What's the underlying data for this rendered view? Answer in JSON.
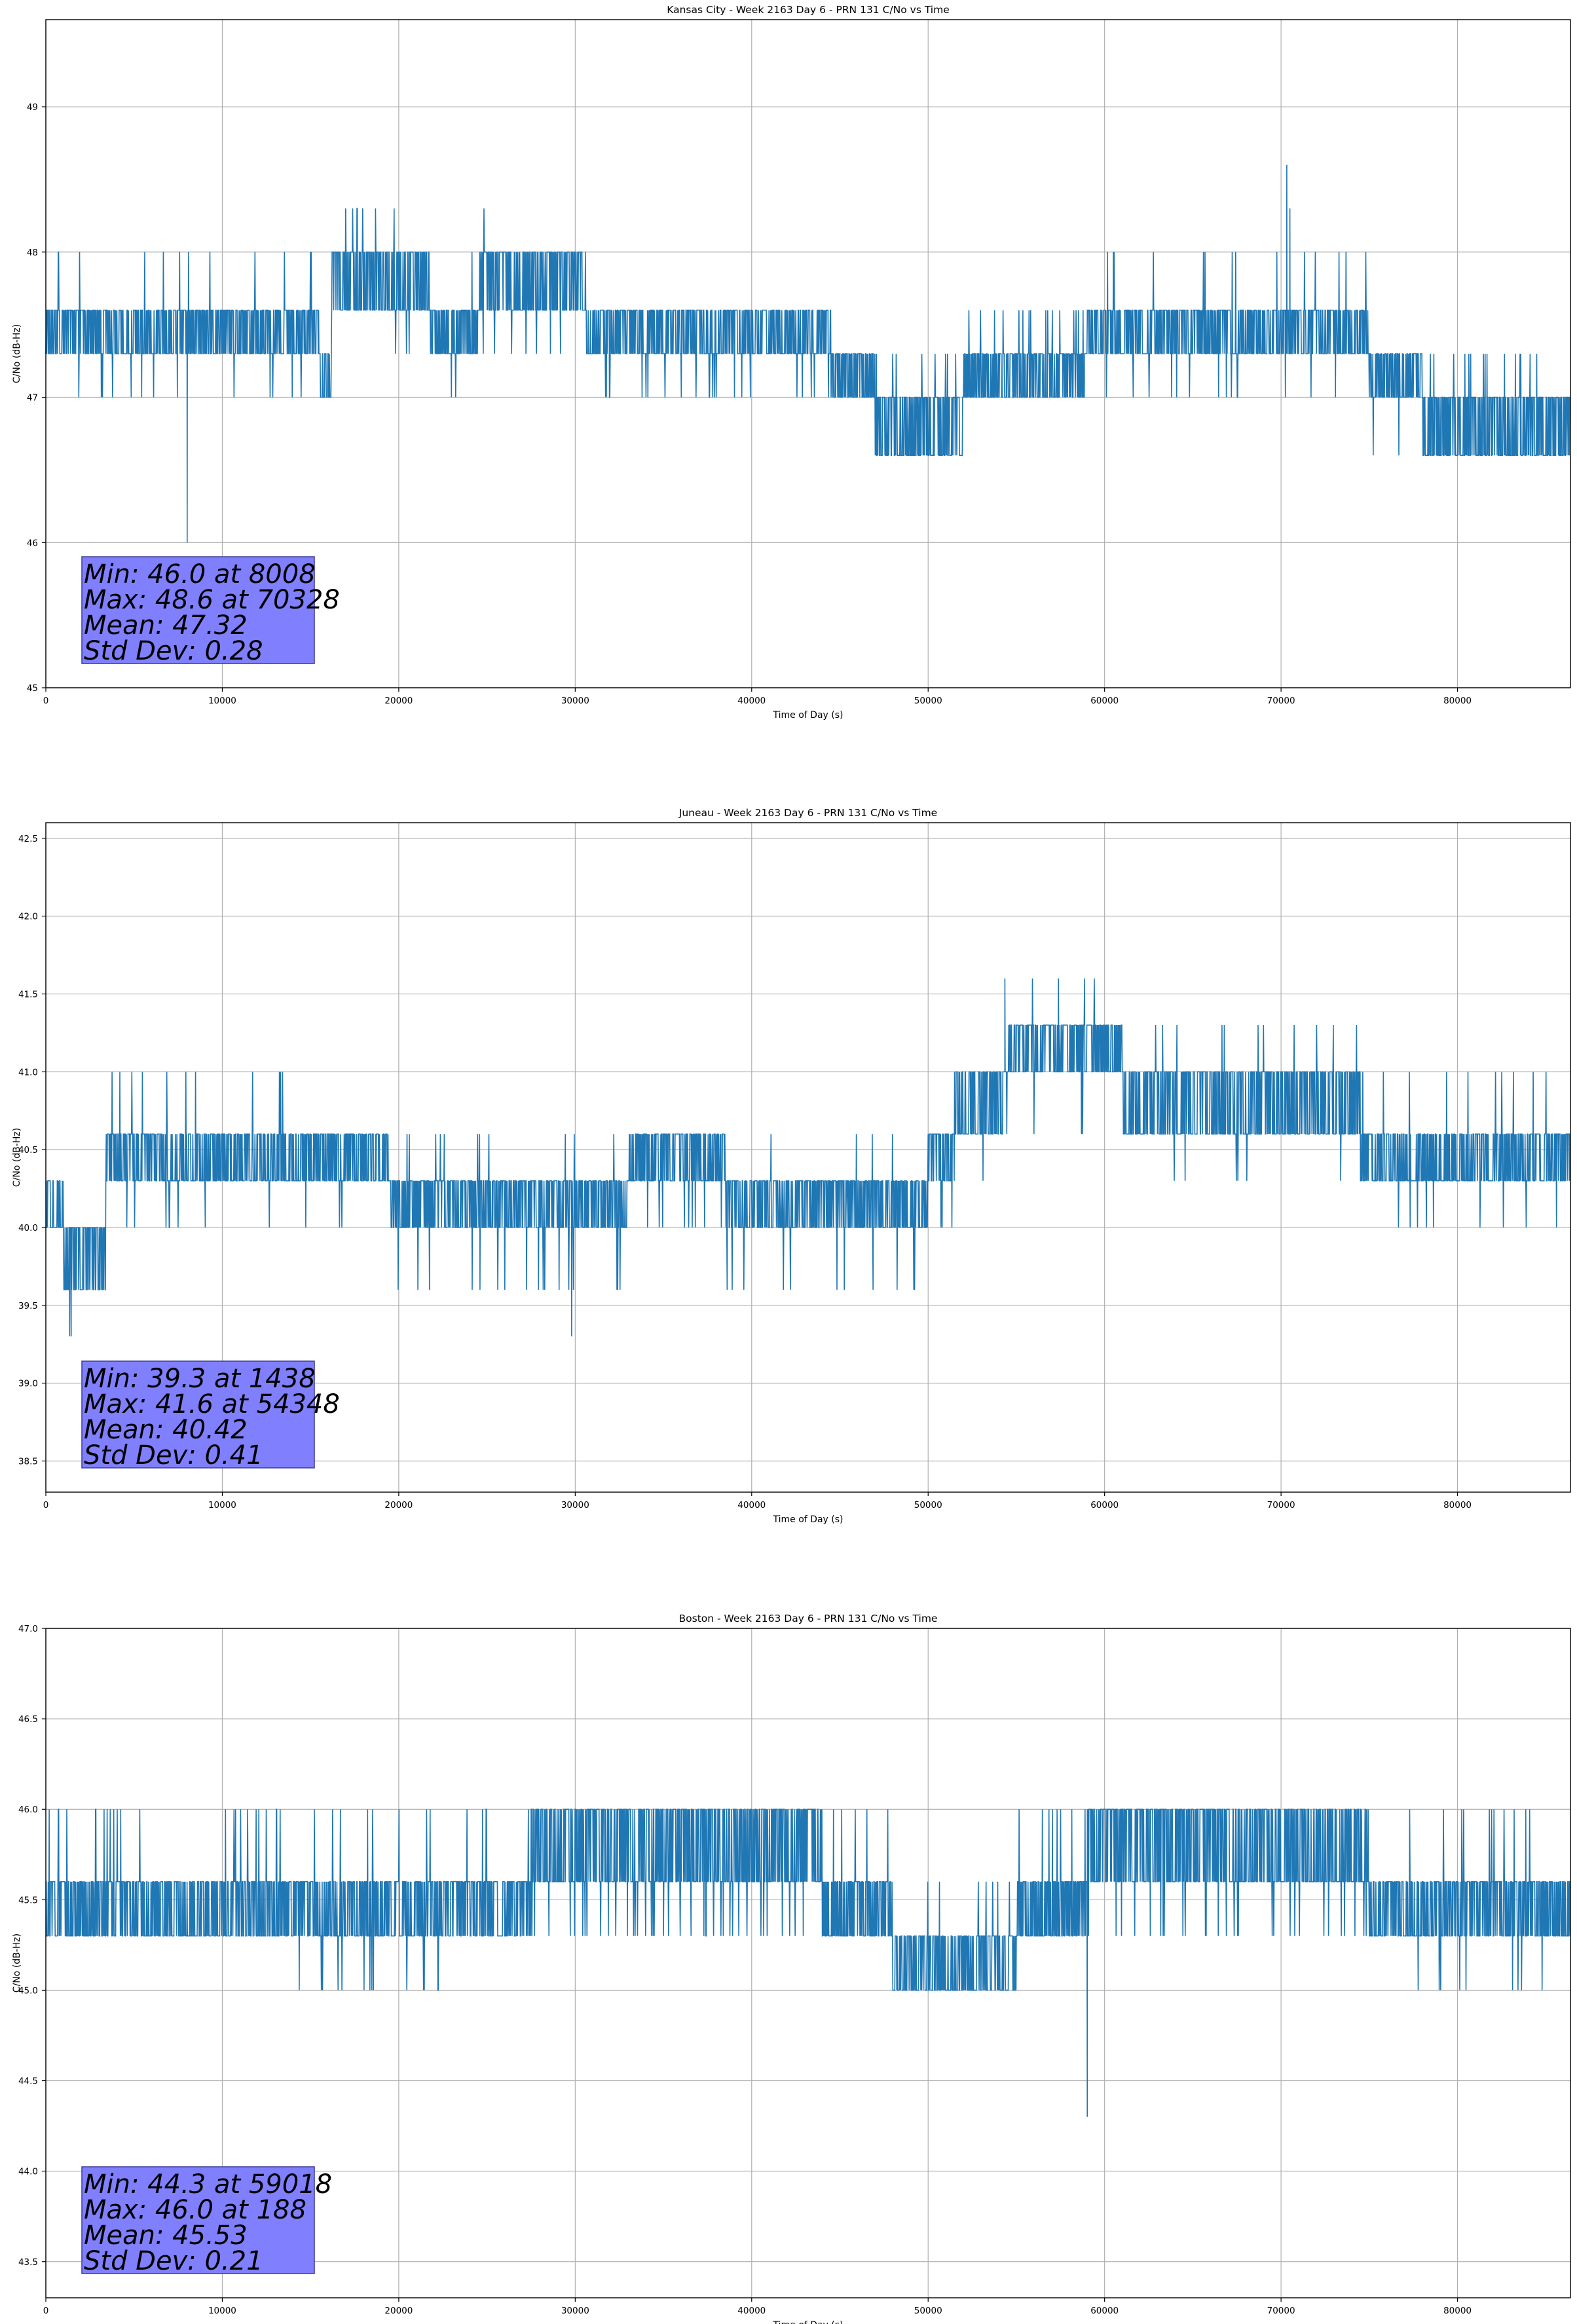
{
  "colors": {
    "line": "#1f77b4",
    "grid": "#b0b0b0",
    "stats_box": "#8080ff",
    "stats_box_border": "#3a3a9a"
  },
  "chart_data": [
    {
      "type": "line",
      "title": "Kansas City - Week 2163 Day 6 - PRN 131 C/No vs Time",
      "xlabel": "Time of Day (s)",
      "ylabel": "C/No (dB-Hz)",
      "xlim": [
        0,
        86400
      ],
      "ylim": [
        45,
        49.6
      ],
      "xticks": [
        0,
        10000,
        20000,
        30000,
        40000,
        50000,
        60000,
        70000,
        80000
      ],
      "yticks": [
        "45",
        "46",
        "47",
        "48",
        "49"
      ],
      "grid": true,
      "stats": [
        "Min: 46.0 at 8008",
        "Max: 48.6 at 70328",
        "Mean: 47.32",
        "Std Dev: 0.28"
      ],
      "segments": [
        {
          "x0": 0,
          "x1": 8000,
          "levels": [
            47.3,
            47.6
          ],
          "spikes": [
            47.0,
            48.0
          ]
        },
        {
          "x0": 8000,
          "x1": 15500,
          "levels": [
            47.3,
            47.6
          ],
          "spikes": [
            47.0,
            48.0
          ]
        },
        {
          "x0": 15500,
          "x1": 16200,
          "levels": [
            47.0,
            47.3
          ],
          "spikes": []
        },
        {
          "x0": 16200,
          "x1": 21800,
          "levels": [
            47.6,
            48.0
          ],
          "spikes": [
            47.3,
            48.3
          ]
        },
        {
          "x0": 21800,
          "x1": 24500,
          "levels": [
            47.3,
            47.6
          ],
          "spikes": [
            47.0,
            48.0
          ]
        },
        {
          "x0": 24500,
          "x1": 30600,
          "levels": [
            47.6,
            48.0
          ],
          "spikes": [
            47.3,
            48.3
          ]
        },
        {
          "x0": 30600,
          "x1": 44500,
          "levels": [
            47.3,
            47.6
          ],
          "spikes": [
            47.0
          ]
        },
        {
          "x0": 44500,
          "x1": 47000,
          "levels": [
            47.0,
            47.3
          ],
          "spikes": []
        },
        {
          "x0": 47000,
          "x1": 52000,
          "levels": [
            46.6,
            47.0
          ],
          "spikes": [
            47.3
          ]
        },
        {
          "x0": 52000,
          "x1": 59000,
          "levels": [
            47.0,
            47.3
          ],
          "spikes": [
            47.6
          ]
        },
        {
          "x0": 59000,
          "x1": 75000,
          "levels": [
            47.3,
            47.6
          ],
          "spikes": [
            47.0,
            48.0
          ]
        },
        {
          "x0": 75000,
          "x1": 78000,
          "levels": [
            47.0,
            47.3
          ],
          "spikes": [
            46.6
          ]
        },
        {
          "x0": 78000,
          "x1": 86400,
          "levels": [
            46.6,
            47.0
          ],
          "spikes": [
            47.3
          ]
        }
      ],
      "events": [
        {
          "x": 8008,
          "y": 46.0
        },
        {
          "x": 70328,
          "y": 48.6
        },
        {
          "x": 70500,
          "y": 48.3
        }
      ]
    },
    {
      "type": "line",
      "title": "Juneau - Week 2163 Day 6 - PRN 131 C/No vs Time",
      "xlabel": "Time of Day (s)",
      "ylabel": "C/No (dB-Hz)",
      "xlim": [
        0,
        86400
      ],
      "ylim": [
        38.3,
        42.6
      ],
      "xticks": [
        0,
        10000,
        20000,
        30000,
        40000,
        50000,
        60000,
        70000,
        80000
      ],
      "yticks": [
        "38.5",
        "39.0",
        "39.5",
        "40.0",
        "40.5",
        "41.0",
        "41.5",
        "42.0",
        "42.5"
      ],
      "grid": true,
      "stats": [
        "Min: 39.3 at 1438",
        "Max: 41.6 at 54348",
        "Mean: 40.42",
        "Std Dev: 0.41"
      ],
      "segments": [
        {
          "x0": 0,
          "x1": 1000,
          "levels": [
            40.0,
            40.3
          ],
          "spikes": []
        },
        {
          "x0": 1000,
          "x1": 3400,
          "levels": [
            39.6,
            40.0
          ],
          "spikes": [
            39.3,
            40.3
          ]
        },
        {
          "x0": 3400,
          "x1": 8000,
          "levels": [
            40.3,
            40.6
          ],
          "spikes": [
            40.0,
            41.0
          ]
        },
        {
          "x0": 8000,
          "x1": 13500,
          "levels": [
            40.3,
            40.6
          ],
          "spikes": [
            40.0,
            41.0
          ]
        },
        {
          "x0": 13500,
          "x1": 19500,
          "levels": [
            40.3,
            40.6
          ],
          "spikes": [
            40.0
          ]
        },
        {
          "x0": 19500,
          "x1": 33000,
          "levels": [
            40.0,
            40.3
          ],
          "spikes": [
            39.6,
            40.6
          ]
        },
        {
          "x0": 33000,
          "x1": 38500,
          "levels": [
            40.3,
            40.6
          ],
          "spikes": [
            40.0
          ]
        },
        {
          "x0": 38500,
          "x1": 50000,
          "levels": [
            40.0,
            40.3
          ],
          "spikes": [
            39.6,
            40.6
          ]
        },
        {
          "x0": 50000,
          "x1": 51500,
          "levels": [
            40.3,
            40.6
          ],
          "spikes": [
            40.0
          ]
        },
        {
          "x0": 51500,
          "x1": 54500,
          "levels": [
            40.6,
            41.0
          ],
          "spikes": [
            40.3,
            41.3
          ]
        },
        {
          "x0": 54500,
          "x1": 61000,
          "levels": [
            41.0,
            41.3
          ],
          "spikes": [
            40.6,
            41.6
          ]
        },
        {
          "x0": 61000,
          "x1": 74500,
          "levels": [
            40.6,
            41.0
          ],
          "spikes": [
            40.3,
            41.3
          ]
        },
        {
          "x0": 74500,
          "x1": 86400,
          "levels": [
            40.3,
            40.6
          ],
          "spikes": [
            40.0,
            41.0
          ]
        }
      ],
      "events": [
        {
          "x": 1438,
          "y": 39.3
        },
        {
          "x": 29800,
          "y": 39.3
        },
        {
          "x": 54348,
          "y": 41.6
        }
      ]
    },
    {
      "type": "line",
      "title": "Boston - Week 2163 Day 6 - PRN 131 C/No vs Time",
      "xlabel": "Time of Day (s)",
      "ylabel": "C/No (dB-Hz)",
      "xlim": [
        0,
        86400
      ],
      "ylim": [
        43.3,
        47.0
      ],
      "xticks": [
        0,
        10000,
        20000,
        30000,
        40000,
        50000,
        60000,
        70000,
        80000
      ],
      "yticks": [
        "43.5",
        "44.0",
        "44.5",
        "45.0",
        "45.5",
        "46.0",
        "46.5",
        "47.0"
      ],
      "grid": true,
      "stats": [
        "Min: 44.3 at 59018",
        "Max: 46.0 at 188",
        "Mean: 45.53",
        "Std Dev: 0.21"
      ],
      "segments": [
        {
          "x0": 0,
          "x1": 13500,
          "levels": [
            45.3,
            45.6
          ],
          "spikes": [
            46.0
          ]
        },
        {
          "x0": 13500,
          "x1": 27500,
          "levels": [
            45.3,
            45.6
          ],
          "spikes": [
            45.0,
            46.0
          ]
        },
        {
          "x0": 27500,
          "x1": 44000,
          "levels": [
            45.6,
            46.0
          ],
          "spikes": [
            45.3
          ]
        },
        {
          "x0": 44000,
          "x1": 48000,
          "levels": [
            45.3,
            45.6
          ],
          "spikes": [
            46.0
          ]
        },
        {
          "x0": 48000,
          "x1": 55000,
          "levels": [
            45.0,
            45.3
          ],
          "spikes": [
            45.6
          ]
        },
        {
          "x0": 55000,
          "x1": 59000,
          "levels": [
            45.3,
            45.6
          ],
          "spikes": [
            46.0
          ]
        },
        {
          "x0": 59000,
          "x1": 75000,
          "levels": [
            45.6,
            46.0
          ],
          "spikes": [
            45.3
          ]
        },
        {
          "x0": 75000,
          "x1": 86400,
          "levels": [
            45.3,
            45.6
          ],
          "spikes": [
            45.0,
            46.0
          ]
        }
      ],
      "events": [
        {
          "x": 188,
          "y": 46.0
        },
        {
          "x": 59018,
          "y": 44.3
        }
      ]
    }
  ]
}
